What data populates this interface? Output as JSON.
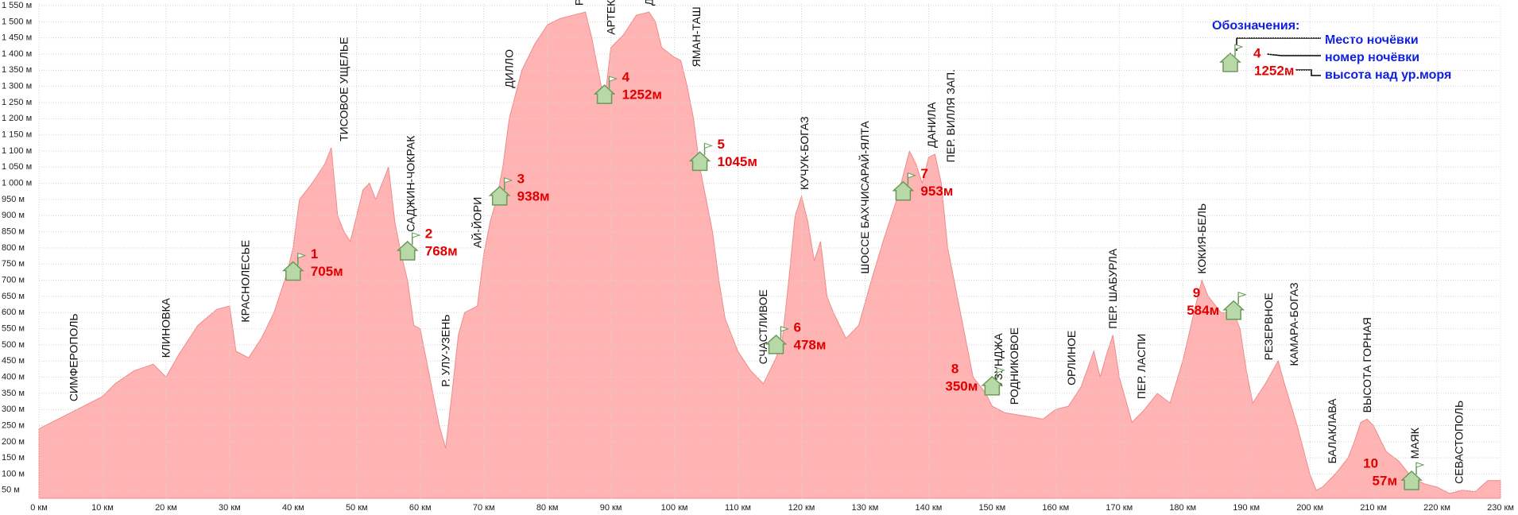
{
  "chart_data": {
    "type": "area",
    "color": "#ffb3b3",
    "line_color": "#f08a8a",
    "grid": true,
    "xlim": [
      0,
      230
    ],
    "ylim": [
      25,
      1555
    ],
    "xticks": [
      {
        "value": 0,
        "label": "0 км"
      },
      {
        "value": 10,
        "label": "10 км"
      },
      {
        "value": 20,
        "label": "20 км"
      },
      {
        "value": 30,
        "label": "30 км"
      },
      {
        "value": 40,
        "label": "40 км"
      },
      {
        "value": 50,
        "label": "50 км"
      },
      {
        "value": 60,
        "label": "60 км"
      },
      {
        "value": 70,
        "label": "70 км"
      },
      {
        "value": 80,
        "label": "80 км"
      },
      {
        "value": 90,
        "label": "90 км"
      },
      {
        "value": 100,
        "label": "100 км"
      },
      {
        "value": 110,
        "label": "110 км"
      },
      {
        "value": 120,
        "label": "120 км"
      },
      {
        "value": 130,
        "label": "130 км"
      },
      {
        "value": 140,
        "label": "140 км"
      },
      {
        "value": 150,
        "label": "150 км"
      },
      {
        "value": 160,
        "label": "160 км"
      },
      {
        "value": 170,
        "label": "170 км"
      },
      {
        "value": 180,
        "label": "180 км"
      },
      {
        "value": 190,
        "label": "190 км"
      },
      {
        "value": 200,
        "label": "200 км"
      },
      {
        "value": 210,
        "label": "210 км"
      },
      {
        "value": 220,
        "label": "220 км"
      },
      {
        "value": 230,
        "label": "230 км"
      }
    ],
    "yticks": [
      {
        "value": 50,
        "label": "50 м"
      },
      {
        "value": 100,
        "label": "100 м"
      },
      {
        "value": 150,
        "label": "150 м"
      },
      {
        "value": 200,
        "label": "200 м"
      },
      {
        "value": 250,
        "label": "250 м"
      },
      {
        "value": 300,
        "label": "300 м"
      },
      {
        "value": 350,
        "label": "350 м"
      },
      {
        "value": 400,
        "label": "400 м"
      },
      {
        "value": 450,
        "label": "450 м"
      },
      {
        "value": 500,
        "label": "500 м"
      },
      {
        "value": 550,
        "label": "550 м"
      },
      {
        "value": 600,
        "label": "600 м"
      },
      {
        "value": 650,
        "label": "650 м"
      },
      {
        "value": 700,
        "label": "700 м"
      },
      {
        "value": 750,
        "label": "750 м"
      },
      {
        "value": 800,
        "label": "800 м"
      },
      {
        "value": 850,
        "label": "850 м"
      },
      {
        "value": 900,
        "label": "900 м"
      },
      {
        "value": 950,
        "label": "950 м"
      },
      {
        "value": 1000,
        "label": "1 000 м"
      },
      {
        "value": 1050,
        "label": "1 050 м"
      },
      {
        "value": 1100,
        "label": "1 100 м"
      },
      {
        "value": 1150,
        "label": "1 150 м"
      },
      {
        "value": 1200,
        "label": "1 200 м"
      },
      {
        "value": 1250,
        "label": "1 250 м"
      },
      {
        "value": 1300,
        "label": "1 300 м"
      },
      {
        "value": 1350,
        "label": "1 350 м"
      },
      {
        "value": 1400,
        "label": "1 400 м"
      },
      {
        "value": 1450,
        "label": "1 450 м"
      },
      {
        "value": 1500,
        "label": "1 500 м"
      },
      {
        "value": 1550,
        "label": "1 550 м"
      }
    ],
    "x": [
      0,
      5,
      10,
      12,
      15,
      18,
      20,
      22,
      25,
      28,
      30,
      31,
      33,
      35,
      37,
      39,
      40,
      41,
      43,
      45,
      46,
      47,
      48,
      49,
      50,
      51,
      52,
      53,
      55,
      56,
      57,
      58,
      59,
      60,
      61,
      63,
      64,
      65,
      66,
      67,
      69,
      70,
      71,
      72,
      73,
      74,
      76,
      78,
      80,
      82,
      84,
      86,
      87,
      88,
      89,
      90,
      92,
      94,
      96,
      97,
      98,
      100,
      101,
      102,
      103,
      104,
      105,
      106,
      107,
      108,
      110,
      112,
      114,
      116,
      117,
      118,
      119,
      120,
      121,
      122,
      123,
      124,
      125,
      126,
      127,
      129,
      131,
      133,
      135,
      137,
      138,
      139,
      140,
      141,
      142,
      143,
      145,
      146,
      147,
      149,
      150,
      152,
      155,
      158,
      160,
      162,
      164,
      166,
      167,
      168,
      169,
      170,
      172,
      174,
      176,
      178,
      180,
      182,
      183,
      184,
      186,
      188,
      189,
      190,
      191,
      193,
      195,
      196,
      198,
      200,
      201,
      202,
      204,
      206,
      207,
      208,
      209,
      210,
      212,
      214,
      216,
      218,
      220,
      222,
      224,
      226,
      228,
      230
    ],
    "values": [
      240,
      290,
      340,
      380,
      420,
      440,
      400,
      470,
      560,
      610,
      620,
      480,
      460,
      520,
      600,
      720,
      800,
      950,
      1000,
      1060,
      1110,
      900,
      850,
      820,
      900,
      980,
      1000,
      950,
      1050,
      880,
      780,
      700,
      560,
      550,
      450,
      250,
      180,
      350,
      530,
      600,
      620,
      780,
      880,
      950,
      1050,
      1200,
      1350,
      1430,
      1490,
      1510,
      1520,
      1530,
      1450,
      1350,
      1250,
      1420,
      1460,
      1520,
      1530,
      1500,
      1420,
      1390,
      1380,
      1300,
      1200,
      1050,
      950,
      850,
      700,
      580,
      480,
      420,
      380,
      460,
      520,
      700,
      900,
      960,
      880,
      760,
      820,
      650,
      600,
      560,
      520,
      560,
      700,
      830,
      950,
      1100,
      1060,
      1000,
      1080,
      1090,
      1000,
      800,
      600,
      500,
      400,
      350,
      310,
      290,
      280,
      270,
      300,
      310,
      370,
      480,
      400,
      470,
      530,
      400,
      260,
      300,
      350,
      320,
      450,
      620,
      700,
      650,
      600,
      600,
      550,
      420,
      320,
      380,
      450,
      380,
      250,
      100,
      50,
      60,
      100,
      150,
      200,
      260,
      270,
      250,
      170,
      140,
      90,
      70,
      60,
      40,
      50,
      45,
      80,
      80
    ],
    "places": [
      {
        "name": "СИМФЕРОПОЛЬ",
        "x": 5
      },
      {
        "name": "КЛИНОВКА",
        "x": 19.5
      },
      {
        "name": "КРАСНОЛЕСЬЕ",
        "x": 32
      },
      {
        "name": "ТИСОВОЕ УЩЕЛЬЕ",
        "x": 47.5
      },
      {
        "name": "САДЖИН-ЧОКРАК",
        "x": 58
      },
      {
        "name": "Р. УЛУ-УЗЕНЬ",
        "x": 63.5
      },
      {
        "name": "АЙ-ЙОРИ",
        "x": 68.5
      },
      {
        "name": "ДИЛЛО",
        "x": 73.5
      },
      {
        "name": "РОМАН-КОШ",
        "x": 84.5
      },
      {
        "name": "АРТЕКОВСКАЯ ПОЛЯНА",
        "x": 89.5
      },
      {
        "name": "ДЕМИР-КАПУ",
        "x": 95.5
      },
      {
        "name": "ЯМАН-ТАШ",
        "x": 103
      },
      {
        "name": "СЧАСТЛИВОЕ",
        "x": 113.5
      },
      {
        "name": "КУЧУК-БОГАЗ",
        "x": 120
      },
      {
        "name": "ШОССЕ БАХЧИСАРАЙ-ЯЛТА",
        "x": 129.5
      },
      {
        "name": "ДАНИЛА",
        "x": 140
      },
      {
        "name": "ПЕР. ВИЛЛЯ ЗАП.",
        "x": 143
      },
      {
        "name": "УЗУНДЖА",
        "x": 150.5
      },
      {
        "name": "РОДНИКОВОЕ",
        "x": 153
      },
      {
        "name": "ОРЛИНОЕ",
        "x": 162
      },
      {
        "name": "ПЕР. ШАБУРЛА",
        "x": 168.5
      },
      {
        "name": "ПЕР. ЛАСПИ",
        "x": 173
      },
      {
        "name": "КОКИЯ-БЕЛЬ",
        "x": 182.5
      },
      {
        "name": "РЕЗЕРВНОЕ",
        "x": 193
      },
      {
        "name": "КАМАРА-БОГАЗ",
        "x": 197
      },
      {
        "name": "БАЛАКЛАВА",
        "x": 203
      },
      {
        "name": "ВЫСОТА ГОРНАЯ",
        "x": 208.5
      },
      {
        "name": "МАЯК",
        "x": 216
      },
      {
        "name": "СЕВАСТОПОЛЬ",
        "x": 223
      }
    ],
    "camps": {
      "x": [
        40,
        58,
        72.5,
        89,
        104,
        116,
        136,
        150,
        188,
        216
      ],
      "numbers": [
        "1",
        "2",
        "3",
        "4",
        "5",
        "6",
        "7",
        "8",
        "9",
        "10"
      ],
      "values": [
        705,
        768,
        938,
        1252,
        1045,
        478,
        953,
        350,
        584,
        57
      ],
      "value_labels": [
        "705м",
        "768м",
        "938м",
        "1252м",
        "1045м",
        "478м",
        "953м",
        "350м",
        "584м",
        "57м"
      ]
    },
    "legend": {
      "title": "Обозначения:",
      "place": "Место ночёвки",
      "number": "номер ночёвки",
      "height": "высота над ур.моря",
      "sample_number": "4",
      "sample_height": "1252м"
    }
  }
}
